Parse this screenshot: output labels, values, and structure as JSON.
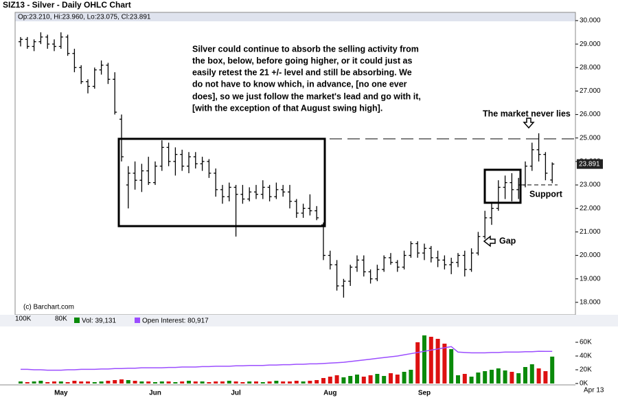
{
  "chart_data": {
    "type": "ohlc",
    "title": "SIZ13 - Silver - Daily OHLC Chart",
    "subtitle": "Op:23.210, Hi:23.960, Lo:23.075, Cl:23.891",
    "credit": "(c) Barchart.com",
    "ylim": [
      17.47,
      30.35
    ],
    "yticks": [
      {
        "value": 18,
        "label": "18.000"
      },
      {
        "value": 19,
        "label": "19.000"
      },
      {
        "value": 20,
        "label": "20.000"
      },
      {
        "value": 21,
        "label": "21.000"
      },
      {
        "value": 22,
        "label": "22.000"
      },
      {
        "value": 23,
        "label": "23.000"
      },
      {
        "value": 24,
        "label": "24.000"
      },
      {
        "value": 25,
        "label": "25.000"
      },
      {
        "value": 26,
        "label": "26.000"
      },
      {
        "value": 27,
        "label": "27.000"
      },
      {
        "value": 28,
        "label": "28.000"
      },
      {
        "value": 29,
        "label": "29.000"
      },
      {
        "value": 30,
        "label": "30.000"
      }
    ],
    "last_price": {
      "value": 23.891,
      "label": "23.891"
    },
    "color": "#000000",
    "categories": [
      null,
      null,
      null,
      null,
      null,
      null,
      "May",
      null,
      null,
      null,
      null,
      null,
      null,
      null,
      null,
      null,
      null,
      null,
      null,
      null,
      "Jun",
      null,
      null,
      null,
      null,
      null,
      null,
      null,
      null,
      null,
      null,
      null,
      "Jul",
      null,
      null,
      null,
      null,
      null,
      null,
      null,
      null,
      null,
      null,
      null,
      null,
      null,
      "Aug",
      null,
      null,
      null,
      null,
      null,
      null,
      null,
      null,
      null,
      null,
      null,
      null,
      null,
      "Sep",
      null,
      null,
      null,
      null,
      null,
      null,
      null,
      null,
      null,
      null,
      null,
      null,
      null,
      null,
      null,
      null,
      null,
      null,
      null
    ],
    "ohlc": [
      [
        29.1,
        29.3,
        28.9,
        29.2
      ],
      [
        29.2,
        29.3,
        28.8,
        28.9
      ],
      [
        28.9,
        29.2,
        28.7,
        29.1
      ],
      [
        29.1,
        29.5,
        29.0,
        29.3
      ],
      [
        29.3,
        29.4,
        28.8,
        29.0
      ],
      [
        29.0,
        29.2,
        28.7,
        28.9
      ],
      [
        28.9,
        29.5,
        28.8,
        29.3
      ],
      [
        29.3,
        29.4,
        28.5,
        28.6
      ],
      [
        28.6,
        28.8,
        27.8,
        28.0
      ],
      [
        28.0,
        28.1,
        27.3,
        27.4
      ],
      [
        27.4,
        27.5,
        26.9,
        27.2
      ],
      [
        27.2,
        28.0,
        27.1,
        27.9
      ],
      [
        27.9,
        28.3,
        27.7,
        28.1
      ],
      [
        28.1,
        28.2,
        27.3,
        27.5
      ],
      [
        27.5,
        27.8,
        26.0,
        26.1
      ],
      [
        25.8,
        26.0,
        24.0,
        24.2
      ],
      [
        23.0,
        23.8,
        22.0,
        23.5
      ],
      [
        23.5,
        24.0,
        22.8,
        23.2
      ],
      [
        23.2,
        23.9,
        22.7,
        23.6
      ],
      [
        23.6,
        24.2,
        23.0,
        23.1
      ],
      [
        23.1,
        24.0,
        23.0,
        23.8
      ],
      [
        23.8,
        24.9,
        23.6,
        24.6
      ],
      [
        24.6,
        24.8,
        23.8,
        24.0
      ],
      [
        24.0,
        24.6,
        23.4,
        24.3
      ],
      [
        24.3,
        24.5,
        23.6,
        23.8
      ],
      [
        23.8,
        24.4,
        23.5,
        24.2
      ],
      [
        24.2,
        24.4,
        23.7,
        23.9
      ],
      [
        23.9,
        24.2,
        23.6,
        24.0
      ],
      [
        24.0,
        24.1,
        23.3,
        23.5
      ],
      [
        23.5,
        23.7,
        22.5,
        22.8
      ],
      [
        22.8,
        23.0,
        22.2,
        22.5
      ],
      [
        22.5,
        23.1,
        22.3,
        22.9
      ],
      [
        22.9,
        23.0,
        20.8,
        22.6
      ],
      [
        22.6,
        23.0,
        22.2,
        22.4
      ],
      [
        22.4,
        22.9,
        22.3,
        22.7
      ],
      [
        22.7,
        23.0,
        22.4,
        22.6
      ],
      [
        22.6,
        23.2,
        22.4,
        22.9
      ],
      [
        22.9,
        23.0,
        22.3,
        22.5
      ],
      [
        22.5,
        23.1,
        22.4,
        22.8
      ],
      [
        22.8,
        23.0,
        22.5,
        22.7
      ],
      [
        22.7,
        23.0,
        22.0,
        22.3
      ],
      [
        22.3,
        22.4,
        21.6,
        21.8
      ],
      [
        21.8,
        22.2,
        21.6,
        22.0
      ],
      [
        22.0,
        22.6,
        21.7,
        21.9
      ],
      [
        21.9,
        22.1,
        21.5,
        21.6
      ],
      [
        21.3,
        21.4,
        19.8,
        20.0
      ],
      [
        20.0,
        20.2,
        19.4,
        19.6
      ],
      [
        19.6,
        19.8,
        18.5,
        18.7
      ],
      [
        18.7,
        19.0,
        18.2,
        18.9
      ],
      [
        18.9,
        19.6,
        18.7,
        19.5
      ],
      [
        19.5,
        20.0,
        19.3,
        19.8
      ],
      [
        19.8,
        20.0,
        19.1,
        19.3
      ],
      [
        19.3,
        19.4,
        18.8,
        19.0
      ],
      [
        19.0,
        19.6,
        18.9,
        19.4
      ],
      [
        19.4,
        20.0,
        19.3,
        19.9
      ],
      [
        19.9,
        20.1,
        19.6,
        19.7
      ],
      [
        19.7,
        19.8,
        19.3,
        19.5
      ],
      [
        19.5,
        20.2,
        19.4,
        20.0
      ],
      [
        20.0,
        20.6,
        19.9,
        20.5
      ],
      [
        20.5,
        20.6,
        19.9,
        20.1
      ],
      [
        20.1,
        20.5,
        19.8,
        20.3
      ],
      [
        20.3,
        20.4,
        19.7,
        19.9
      ],
      [
        19.9,
        20.2,
        19.5,
        19.8
      ],
      [
        19.8,
        20.0,
        19.4,
        19.6
      ],
      [
        19.6,
        19.9,
        19.2,
        19.7
      ],
      [
        19.7,
        20.1,
        19.5,
        20.0
      ],
      [
        20.0,
        20.2,
        19.1,
        19.4
      ],
      [
        19.4,
        20.3,
        19.3,
        20.1
      ],
      [
        20.1,
        21.0,
        20.0,
        20.8
      ],
      [
        20.8,
        21.9,
        20.7,
        21.6
      ],
      [
        21.6,
        22.2,
        21.3,
        22.0
      ],
      [
        22.0,
        23.2,
        21.9,
        22.9
      ],
      [
        22.9,
        23.4,
        22.4,
        23.1
      ],
      [
        23.1,
        23.5,
        22.3,
        22.8
      ],
      [
        22.8,
        23.3,
        22.4,
        23.0
      ],
      [
        23.0,
        24.0,
        22.9,
        23.8
      ],
      [
        23.8,
        24.8,
        23.6,
        24.5
      ],
      [
        24.5,
        25.2,
        24.0,
        24.3
      ],
      [
        24.3,
        24.4,
        23.2,
        23.5
      ],
      [
        23.21,
        23.96,
        23.075,
        23.891
      ]
    ],
    "annotations": {
      "paragraph": [
        "Silver could continue to absorb the selling activity from",
        "the box, below, before going higher, or it could just as",
        "easily retest the 21 +/- level and still be absorbing.  We",
        "do not have to know which, in advance, [no one ever",
        "does], so we just follow the market's lead and go with it,",
        "[with the exception of that August swing high]."
      ],
      "peak": "The market never lies",
      "gap": "Gap",
      "support": "Support"
    },
    "lower_panel": {
      "volume_legend": "Vol: 39,131",
      "oi_legend": "Open Interest: 80,917",
      "volume_color_up": "#0a8a0a",
      "volume_color_down": "#dd1111",
      "oi_color": "#9b4dff",
      "ylim": [
        0,
        80000
      ],
      "yticks": [
        {
          "value": 0,
          "label": "0K"
        },
        {
          "value": 20000,
          "label": "20K"
        },
        {
          "value": 40000,
          "label": "40K"
        },
        {
          "value": 60000,
          "label": "60K"
        }
      ],
      "y2lim": [
        40000,
        110000
      ],
      "y2ticks": [
        {
          "value": 100000,
          "label": "100K"
        },
        {
          "value": 80000,
          "label": "80K"
        }
      ],
      "extra_date": "Apr 13",
      "volume": [
        3000,
        2000,
        3000,
        4000,
        2000,
        3000,
        3000,
        2000,
        4000,
        3000,
        3000,
        2000,
        3000,
        4000,
        5000,
        6000,
        5000,
        4000,
        3000,
        3000,
        2000,
        3000,
        3000,
        2000,
        3000,
        4000,
        3000,
        3000,
        2000,
        3000,
        3000,
        4000,
        3000,
        2000,
        3000,
        3000,
        2000,
        3000,
        4000,
        3000,
        3000,
        4000,
        3000,
        4000,
        5000,
        8000,
        10000,
        12000,
        9000,
        11000,
        13000,
        10000,
        12000,
        14000,
        11000,
        15000,
        13000,
        17000,
        20000,
        60000,
        70000,
        68000,
        65000,
        58000,
        50000,
        12000,
        14000,
        10000,
        16000,
        18000,
        20000,
        22000,
        19000,
        17000,
        15000,
        24000,
        28000,
        22000,
        18000,
        39131
      ],
      "open_interest": [
        58000,
        58000,
        57500,
        57500,
        57000,
        57000,
        57000,
        57500,
        57500,
        58000,
        58000,
        58000,
        58500,
        58500,
        59000,
        59000,
        59500,
        59500,
        60000,
        60000,
        60000,
        60000,
        60500,
        60500,
        61000,
        61000,
        61000,
        61500,
        61500,
        62000,
        62000,
        62000,
        62500,
        62500,
        63000,
        63000,
        63000,
        63500,
        63500,
        64000,
        64000,
        64500,
        64500,
        65000,
        65000,
        65500,
        66000,
        66500,
        67000,
        68000,
        69000,
        70000,
        71000,
        72000,
        73000,
        74000,
        75000,
        76500,
        78000,
        79500,
        81000,
        82500,
        84000,
        85500,
        87000,
        80000,
        79500,
        79000,
        79000,
        79000,
        79500,
        79500,
        80000,
        80000,
        80000,
        80500,
        80500,
        81000,
        80917,
        80917
      ]
    }
  }
}
